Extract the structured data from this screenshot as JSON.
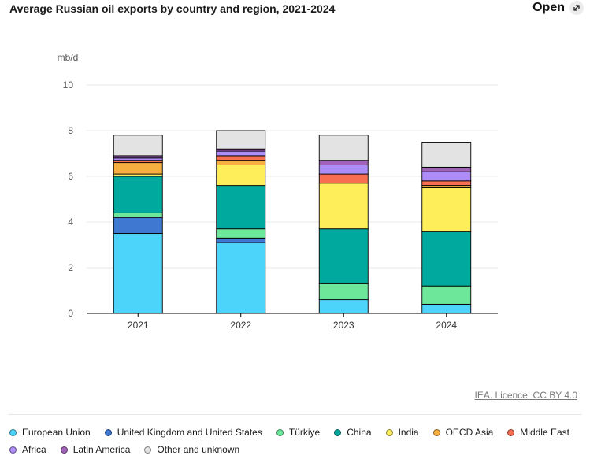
{
  "header": {
    "title": "Average Russian oil exports by country and region, 2021-2024",
    "open_label": "Open"
  },
  "footer": {
    "license_text": "IEA. Licence: CC BY 4.0"
  },
  "colors": {
    "axis": "#000000",
    "grid": "#e8e8e8",
    "tick_text": "#555555"
  },
  "chart_data": {
    "type": "bar",
    "stacked": true,
    "title": "Average Russian oil exports by country and region, 2021-2024",
    "xlabel": "",
    "ylabel": "mb/d",
    "ylim": [
      0,
      10
    ],
    "yticks": [
      0,
      2,
      4,
      6,
      8,
      10
    ],
    "grid": true,
    "legend_position": "bottom",
    "categories": [
      "2021",
      "2022",
      "2023",
      "2024"
    ],
    "series": [
      {
        "name": "European Union",
        "color": "#4dd4fb",
        "values": [
          3.5,
          3.1,
          0.6,
          0.4
        ]
      },
      {
        "name": "United Kingdom and United States",
        "color": "#3f78d1",
        "values": [
          0.7,
          0.2,
          0.0,
          0.0
        ]
      },
      {
        "name": "Türkiye",
        "color": "#6de89b",
        "values": [
          0.2,
          0.4,
          0.7,
          0.8
        ]
      },
      {
        "name": "China",
        "color": "#00a99d",
        "values": [
          1.6,
          1.9,
          2.4,
          2.4
        ]
      },
      {
        "name": "India",
        "color": "#fdee5a",
        "values": [
          0.1,
          0.9,
          2.0,
          1.9
        ]
      },
      {
        "name": "OECD Asia",
        "color": "#f7b03f",
        "values": [
          0.5,
          0.2,
          0.0,
          0.1
        ]
      },
      {
        "name": "Middle East",
        "color": "#f76e51",
        "values": [
          0.1,
          0.2,
          0.4,
          0.2
        ]
      },
      {
        "name": "Africa",
        "color": "#ad8cf7",
        "values": [
          0.1,
          0.2,
          0.4,
          0.4
        ]
      },
      {
        "name": "Latin America",
        "color": "#a163b9",
        "values": [
          0.1,
          0.1,
          0.2,
          0.2
        ]
      },
      {
        "name": "Other and unknown",
        "color": "#e3e3e3",
        "values": [
          0.9,
          0.8,
          1.1,
          1.1
        ]
      }
    ]
  }
}
